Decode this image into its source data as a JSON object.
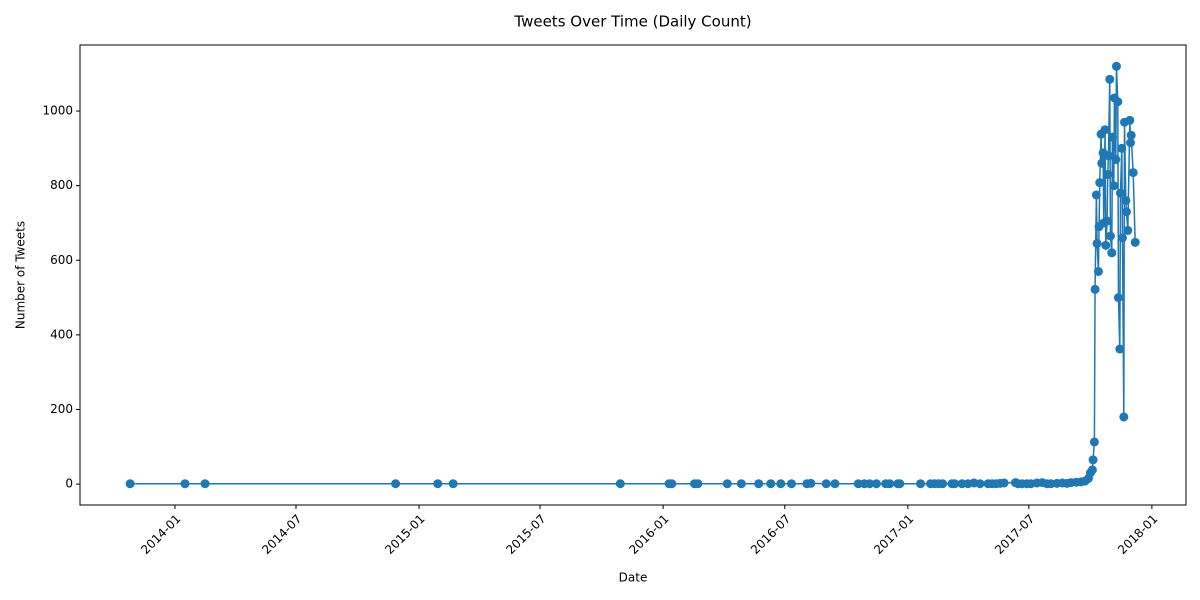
{
  "chart_data": {
    "type": "line",
    "title": "Tweets Over Time (Daily Count)",
    "x_label": "Date",
    "y_label": "Number of Tweets",
    "color": "#1f77b4",
    "x": [
      "2013-10-26",
      "2014-01-16",
      "2014-02-15",
      "2014-11-27",
      "2015-01-29",
      "2015-02-21",
      "2015-10-29",
      "2016-01-10",
      "2016-01-14",
      "2016-02-17",
      "2016-02-22",
      "2016-04-06",
      "2016-04-27",
      "2016-05-23",
      "2016-06-10",
      "2016-06-25",
      "2016-07-11",
      "2016-08-03",
      "2016-08-09",
      "2016-09-01",
      "2016-09-14",
      "2016-10-19",
      "2016-10-28",
      "2016-11-05",
      "2016-11-15",
      "2016-11-29",
      "2016-12-05",
      "2016-12-17",
      "2016-12-20",
      "2017-01-20",
      "2017-02-04",
      "2017-02-10",
      "2017-02-16",
      "2017-02-22",
      "2017-03-08",
      "2017-03-12",
      "2017-03-23",
      "2017-04-01",
      "2017-04-10",
      "2017-04-19",
      "2017-05-01",
      "2017-05-07",
      "2017-05-13",
      "2017-05-19",
      "2017-05-25",
      "2017-06-11",
      "2017-06-15",
      "2017-06-21",
      "2017-06-28",
      "2017-07-04",
      "2017-07-13",
      "2017-07-21",
      "2017-07-28",
      "2017-08-03",
      "2017-08-12",
      "2017-08-20",
      "2017-08-27",
      "2017-09-02",
      "2017-09-10",
      "2017-09-17",
      "2017-09-23",
      "2017-09-28",
      "2017-10-01",
      "2017-10-04",
      "2017-10-05",
      "2017-10-07",
      "2017-10-08",
      "2017-10-10",
      "2017-10-11",
      "2017-10-13",
      "2017-10-14",
      "2017-10-15",
      "2017-10-17",
      "2017-10-18",
      "2017-10-20",
      "2017-10-21",
      "2017-10-23",
      "2017-10-24",
      "2017-10-26",
      "2017-10-27",
      "2017-10-28",
      "2017-10-30",
      "2017-10-31",
      "2017-11-02",
      "2017-11-03",
      "2017-11-05",
      "2017-11-06",
      "2017-11-08",
      "2017-11-09",
      "2017-11-11",
      "2017-11-12",
      "2017-11-14",
      "2017-11-15",
      "2017-11-17",
      "2017-11-18",
      "2017-11-20",
      "2017-11-21",
      "2017-11-23",
      "2017-11-24",
      "2017-11-26",
      "2017-11-29",
      "2017-11-30",
      "2017-12-01",
      "2017-12-04",
      "2017-12-07"
    ],
    "values": [
      1,
      1,
      1,
      1,
      1,
      1,
      1,
      1,
      1,
      1,
      1,
      1,
      1,
      1,
      1,
      1,
      1,
      1,
      2,
      1,
      1,
      1,
      1,
      1,
      1,
      1,
      1,
      1,
      1,
      1,
      1,
      1,
      1,
      1,
      1,
      1,
      1,
      1,
      3,
      1,
      1,
      1,
      1,
      2,
      3,
      4,
      1,
      1,
      1,
      1,
      3,
      4,
      1,
      1,
      2,
      3,
      2,
      4,
      5,
      6,
      8,
      15,
      30,
      38,
      65,
      113,
      522,
      775,
      645,
      570,
      690,
      808,
      938,
      860,
      888,
      700,
      950,
      640,
      705,
      830,
      880,
      1085,
      665,
      620,
      930,
      800,
      1035,
      870,
      1120,
      1025,
      500,
      362,
      780,
      900,
      660,
      180,
      970,
      760,
      730,
      680,
      975,
      915,
      935,
      835,
      648
    ],
    "xlim": [
      "2013-08-12",
      "2018-02-21"
    ],
    "xticks": [
      {
        "value": "2014-01-01",
        "label": "2014-01"
      },
      {
        "value": "2014-07-01",
        "label": "2014-07"
      },
      {
        "value": "2015-01-01",
        "label": "2015-01"
      },
      {
        "value": "2015-07-01",
        "label": "2015-07"
      },
      {
        "value": "2016-01-01",
        "label": "2016-01"
      },
      {
        "value": "2016-07-01",
        "label": "2016-07"
      },
      {
        "value": "2017-01-01",
        "label": "2017-01"
      },
      {
        "value": "2017-07-01",
        "label": "2017-07"
      },
      {
        "value": "2018-01-01",
        "label": "2018-01"
      }
    ],
    "ylim": [
      -56,
      1177
    ],
    "yticks": [
      0,
      200,
      400,
      600,
      800,
      1000
    ],
    "grid": false,
    "markers": true
  }
}
